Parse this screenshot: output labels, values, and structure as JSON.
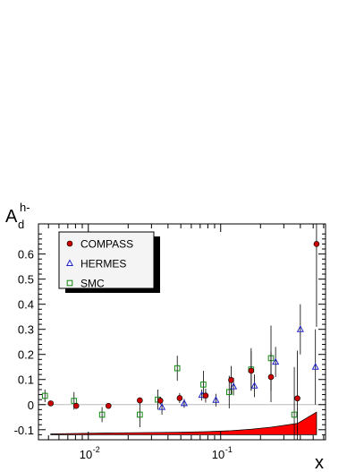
{
  "chart_data": {
    "type": "scatter",
    "title": "",
    "ylabel_main": "A",
    "ylabel_sub": "d",
    "ylabel_sup": "h-",
    "xlabel": "x",
    "x_scale": "log",
    "xlim": [
      0.0042,
      0.62
    ],
    "ylim": [
      -0.14,
      0.72
    ],
    "grid": false,
    "legend_position": "top-left",
    "y_ticks": [
      -0.1,
      0,
      0.1,
      0.2,
      0.3,
      0.4,
      0.5,
      0.6
    ],
    "y_tick_labels": [
      "-0.1",
      "0",
      "0.1",
      "0.2",
      "0.3",
      "0.4",
      "0.5",
      "0.6"
    ],
    "x_ticks": [
      0.01,
      0.1
    ],
    "x_tick_labels_base": [
      "10",
      "10"
    ],
    "x_tick_labels_exp": [
      "-2",
      "-1"
    ],
    "colors": {
      "compass": "#cc0000",
      "hermes": "#2222cc",
      "smc": "#118811",
      "band": "#ff0000",
      "zero_line": "#bbbbbb"
    },
    "series": [
      {
        "name": "COMPASS",
        "marker": "circle",
        "points": [
          {
            "x": 0.0052,
            "y": 0.005,
            "err": 0.006
          },
          {
            "x": 0.0081,
            "y": -0.005,
            "err": 0.008
          },
          {
            "x": 0.0142,
            "y": -0.005,
            "err": 0.009
          },
          {
            "x": 0.0245,
            "y": 0.017,
            "err": 0.012
          },
          {
            "x": 0.035,
            "y": 0.016,
            "err": 0.015
          },
          {
            "x": 0.049,
            "y": 0.026,
            "err": 0.02
          },
          {
            "x": 0.077,
            "y": 0.036,
            "err": 0.028
          },
          {
            "x": 0.12,
            "y": 0.098,
            "err": 0.056
          },
          {
            "x": 0.17,
            "y": 0.135,
            "err": 0.078
          },
          {
            "x": 0.24,
            "y": 0.11,
            "err": 0.1
          },
          {
            "x": 0.38,
            "y": 0.025,
            "err": 0.19
          },
          {
            "x": 0.53,
            "y": 0.64,
            "err": 0.33
          }
        ]
      },
      {
        "name": "HERMES",
        "marker": "triangle",
        "points": [
          {
            "x": 0.036,
            "y": -0.01,
            "err": 0.03
          },
          {
            "x": 0.053,
            "y": 0.005,
            "err": 0.018
          },
          {
            "x": 0.072,
            "y": 0.038,
            "err": 0.022
          },
          {
            "x": 0.092,
            "y": 0.018,
            "err": 0.025
          },
          {
            "x": 0.125,
            "y": 0.072,
            "err": 0.035
          },
          {
            "x": 0.18,
            "y": 0.075,
            "err": 0.045
          },
          {
            "x": 0.26,
            "y": 0.17,
            "err": 0.06
          },
          {
            "x": 0.4,
            "y": 0.3,
            "err": 0.1
          },
          {
            "x": 0.52,
            "y": 0.15,
            "err": 0.15
          }
        ]
      },
      {
        "name": "SMC",
        "marker": "square",
        "points": [
          {
            "x": 0.0047,
            "y": 0.035,
            "err": 0.025
          },
          {
            "x": 0.0078,
            "y": 0.015,
            "err": 0.035
          },
          {
            "x": 0.0127,
            "y": -0.04,
            "err": 0.03
          },
          {
            "x": 0.0245,
            "y": -0.04,
            "err": 0.05
          },
          {
            "x": 0.0335,
            "y": 0.02,
            "err": 0.04
          },
          {
            "x": 0.047,
            "y": 0.145,
            "err": 0.05
          },
          {
            "x": 0.074,
            "y": 0.08,
            "err": 0.055
          },
          {
            "x": 0.116,
            "y": 0.05,
            "err": 0.065
          },
          {
            "x": 0.17,
            "y": 0.14,
            "err": 0.085
          },
          {
            "x": 0.24,
            "y": 0.185,
            "err": 0.13
          },
          {
            "x": 0.36,
            "y": -0.04,
            "err": 0.19
          }
        ]
      }
    ],
    "systematic_band": {
      "x": [
        0.0052,
        0.0081,
        0.0142,
        0.0245,
        0.035,
        0.049,
        0.077,
        0.12,
        0.17,
        0.24,
        0.38,
        0.53
      ],
      "lower": [
        -0.12,
        -0.12,
        -0.12,
        -0.12,
        -0.12,
        -0.12,
        -0.12,
        -0.12,
        -0.12,
        -0.12,
        -0.12,
        -0.12
      ],
      "upper": [
        -0.117,
        -0.115,
        -0.113,
        -0.112,
        -0.111,
        -0.11,
        -0.108,
        -0.104,
        -0.098,
        -0.09,
        -0.075,
        -0.03
      ]
    }
  }
}
